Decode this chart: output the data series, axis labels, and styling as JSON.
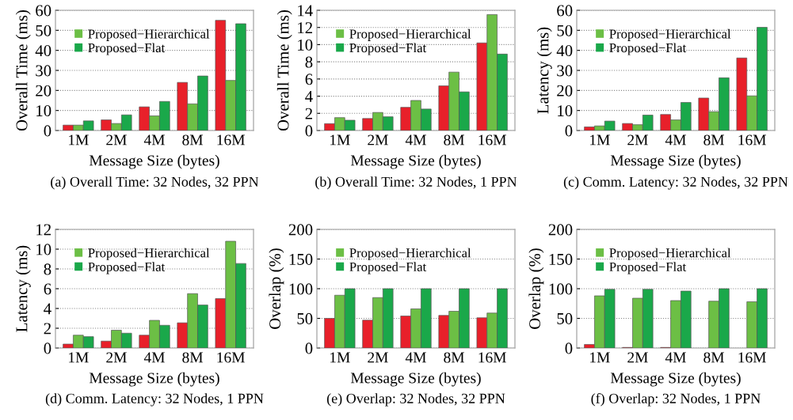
{
  "chart_data": [
    {
      "type": "bar",
      "title": "(a) Overall Time: 32 Nodes, 32 PPN",
      "xlabel": "Message Size (bytes)",
      "ylabel": "Overall Time (ms)",
      "categories": [
        "1M",
        "2M",
        "4M",
        "8M",
        "16M"
      ],
      "ylim": [
        0,
        60
      ],
      "yticks": [
        0,
        10,
        20,
        30,
        40,
        50,
        60
      ],
      "grid": "y",
      "legend": "top left",
      "series": [
        {
          "color": "#e8202a",
          "values": [
            2.7,
            5.3,
            11.8,
            24,
            55
          ]
        },
        {
          "name": "Proposed−Hierarchical",
          "color": "#6cbf45",
          "values": [
            2.7,
            3.5,
            7.3,
            13.3,
            25
          ]
        },
        {
          "name": "Proposed−Flat",
          "color": "#1aa84a",
          "values": [
            4.8,
            7.8,
            14.5,
            27.2,
            53.3
          ]
        }
      ]
    },
    {
      "type": "bar",
      "title": "(b) Overall Time: 32 Nodes, 1 PPN",
      "xlabel": "Message Size (bytes)",
      "ylabel": "Overall Time (ms)",
      "categories": [
        "1M",
        "2M",
        "4M",
        "8M",
        "16M"
      ],
      "ylim": [
        0,
        14
      ],
      "yticks": [
        0,
        2,
        4,
        6,
        8,
        10,
        12,
        14
      ],
      "grid": "y",
      "legend": "top left",
      "series": [
        {
          "color": "#e8202a",
          "values": [
            0.8,
            1.4,
            2.7,
            5.2,
            10.2
          ]
        },
        {
          "name": "Proposed−Hierarchical",
          "color": "#6cbf45",
          "values": [
            1.5,
            2.1,
            3.5,
            6.8,
            13.5
          ]
        },
        {
          "name": "Proposed−Flat",
          "color": "#1aa84a",
          "values": [
            1.2,
            1.6,
            2.5,
            4.5,
            8.9
          ]
        }
      ]
    },
    {
      "type": "bar",
      "title": "(c) Comm. Latency: 32 Nodes, 32 PPN",
      "xlabel": "Message Size (bytes)",
      "ylabel": "Latency (ms)",
      "categories": [
        "1M",
        "2M",
        "4M",
        "8M",
        "16M"
      ],
      "ylim": [
        0,
        60
      ],
      "yticks": [
        0,
        10,
        20,
        30,
        40,
        50,
        60
      ],
      "grid": "y",
      "legend": "top left",
      "series": [
        {
          "color": "#e8202a",
          "values": [
            1.8,
            3.5,
            8,
            16.2,
            36.2
          ]
        },
        {
          "name": "Proposed−Hierarchical",
          "color": "#6cbf45",
          "values": [
            2.3,
            2.9,
            5.3,
            9.4,
            17.3
          ]
        },
        {
          "name": "Proposed−Flat",
          "color": "#1aa84a",
          "values": [
            4.7,
            7.7,
            14,
            26.3,
            51.5
          ]
        }
      ]
    },
    {
      "type": "bar",
      "title": "(d) Comm. Latency: 32 Nodes, 1 PPN",
      "xlabel": "Message Size (bytes)",
      "ylabel": "Latency (ms)",
      "categories": [
        "1M",
        "2M",
        "4M",
        "8M",
        "16M"
      ],
      "ylim": [
        0,
        12
      ],
      "yticks": [
        0,
        2,
        4,
        6,
        8,
        10,
        12
      ],
      "grid": "y",
      "legend": "top left",
      "series": [
        {
          "color": "#e8202a",
          "values": [
            0.4,
            0.7,
            1.3,
            2.55,
            5.0
          ]
        },
        {
          "name": "Proposed−Hierarchical",
          "color": "#6cbf45",
          "values": [
            1.3,
            1.8,
            2.8,
            5.5,
            10.8
          ]
        },
        {
          "name": "Proposed−Flat",
          "color": "#1aa84a",
          "values": [
            1.15,
            1.5,
            2.3,
            4.35,
            8.55
          ]
        }
      ]
    },
    {
      "type": "bar",
      "title": "(e) Overlap: 32 Nodes, 32 PPN",
      "xlabel": "Message Size (bytes)",
      "ylabel": "Overlap (%)",
      "categories": [
        "1M",
        "2M",
        "4M",
        "8M",
        "16M"
      ],
      "ylim": [
        0,
        200
      ],
      "yticks": [
        0,
        50,
        100,
        150,
        200
      ],
      "grid": "y",
      "legend": "top left",
      "series": [
        {
          "color": "#e8202a",
          "values": [
            50,
            47,
            54,
            55,
            51
          ]
        },
        {
          "name": "Proposed−Hierarchical",
          "color": "#6cbf45",
          "values": [
            89,
            85,
            66,
            62,
            59
          ]
        },
        {
          "name": "Proposed−Flat",
          "color": "#1aa84a",
          "values": [
            100,
            100,
            100,
            100,
            100
          ]
        }
      ]
    },
    {
      "type": "bar",
      "title": "(f) Overlap: 32 Nodes, 1 PPN",
      "xlabel": "Message Size (bytes)",
      "ylabel": "Overlap (%)",
      "categories": [
        "1M",
        "2M",
        "4M",
        "8M",
        "16M"
      ],
      "ylim": [
        0,
        200
      ],
      "yticks": [
        0,
        50,
        100,
        150,
        200
      ],
      "grid": "y",
      "legend": "top left",
      "series": [
        {
          "color": "#e8202a",
          "values": [
            6,
            1,
            1,
            0,
            0
          ]
        },
        {
          "name": "Proposed−Hierarchical",
          "color": "#6cbf45",
          "values": [
            88,
            84,
            80,
            79,
            78
          ]
        },
        {
          "name": "Proposed−Flat",
          "color": "#1aa84a",
          "values": [
            99,
            99,
            96,
            100,
            100
          ]
        }
      ]
    }
  ]
}
